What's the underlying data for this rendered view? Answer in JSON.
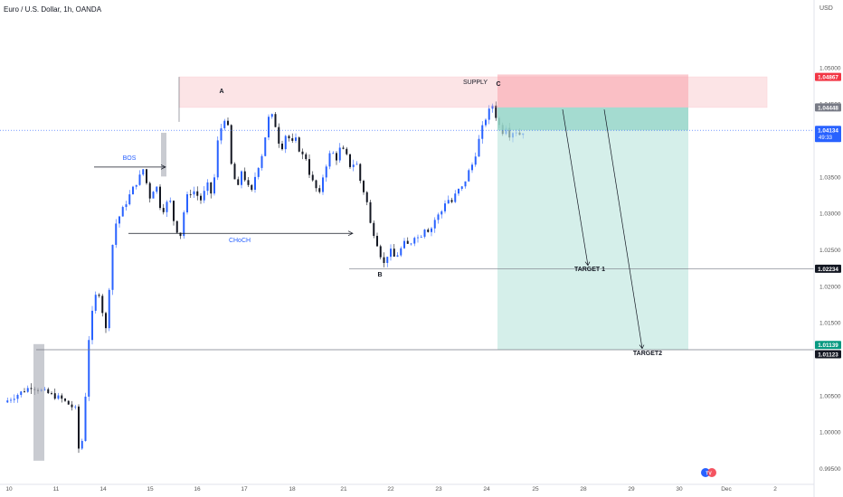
{
  "header": {
    "title": "Euro / U.S. Dollar, 1h, OANDA",
    "currency": "USD"
  },
  "colors": {
    "up": "#2962ff",
    "down": "#131722",
    "supply_fill": "#f7b3b9",
    "target_fill": "#bfe6de",
    "target_top": "#8fd3c5",
    "annotation_blue": "#2962ff"
  },
  "chart_data": {
    "type": "candlestick",
    "x_ticks": [
      "10",
      "11",
      "14",
      "15",
      "16",
      "17",
      "18",
      "21",
      "22",
      "23",
      "24",
      "25",
      "28",
      "29",
      "30",
      "Dec",
      "2"
    ],
    "y_ticks": [
      "1.05000",
      "1.04500",
      "1.03500",
      "1.03000",
      "1.02500",
      "1.02000",
      "1.01500",
      "1.00500",
      "1.00000",
      "0.99500"
    ],
    "ylim": [
      0.9935,
      1.0555
    ],
    "price_tags": {
      "supply_top": "1.04867",
      "supply_bottom": "1.04448",
      "current": "1.04134",
      "countdown": "49:33",
      "target1": "1.02234",
      "target2_a": "1.01139",
      "target2_b": "1.01123"
    },
    "annotations": {
      "bos": "BOS",
      "choch": "CHoCH",
      "supply": "SUPPLY",
      "point_a": "A",
      "point_b": "B",
      "point_c": "C",
      "target1": "TARGET 1",
      "target2": "TARGET2"
    },
    "levels": {
      "supply_zone": [
        1.04448,
        1.04867
      ],
      "target1": 1.02234,
      "target2": 1.01123,
      "bos": 1.0363,
      "choch": 1.0272,
      "current": 1.04134
    },
    "trend_points": [
      [
        0.0,
        1.004
      ],
      [
        2.0,
        1.0062
      ],
      [
        4.2,
        1.0045
      ],
      [
        5.3,
        1.003
      ],
      [
        5.6,
        0.995
      ],
      [
        6.0,
        1.005
      ],
      [
        6.3,
        1.0143
      ],
      [
        6.9,
        1.02
      ],
      [
        7.5,
        1.014
      ],
      [
        8.1,
        1.028
      ],
      [
        9.4,
        1.033
      ],
      [
        10.0,
        1.035
      ],
      [
        10.3,
        1.0362
      ],
      [
        10.7,
        1.032
      ],
      [
        11.2,
        1.034
      ],
      [
        11.6,
        1.03
      ],
      [
        12.2,
        1.032
      ],
      [
        12.6,
        1.028
      ],
      [
        13.0,
        1.027
      ],
      [
        13.4,
        1.032
      ],
      [
        13.9,
        1.0332
      ],
      [
        14.5,
        1.0318
      ],
      [
        15.0,
        1.0338
      ],
      [
        15.3,
        1.0325
      ],
      [
        15.6,
        1.036
      ],
      [
        15.8,
        1.041
      ],
      [
        16.1,
        1.042
      ],
      [
        16.4,
        1.044
      ],
      [
        16.7,
        1.037
      ],
      [
        17.2,
        1.033
      ],
      [
        17.5,
        1.0358
      ],
      [
        17.8,
        1.0345
      ],
      [
        18.2,
        1.0325
      ],
      [
        18.5,
        1.035
      ],
      [
        19.0,
        1.038
      ],
      [
        19.3,
        1.041
      ],
      [
        19.6,
        1.044
      ],
      [
        20.0,
        1.042
      ],
      [
        20.4,
        1.0385
      ],
      [
        20.8,
        1.041
      ],
      [
        21.2,
        1.0395
      ],
      [
        21.5,
        1.04
      ],
      [
        21.9,
        1.038
      ],
      [
        22.3,
        1.0375
      ],
      [
        22.6,
        1.0345
      ],
      [
        22.9,
        1.034
      ],
      [
        23.2,
        1.032
      ],
      [
        23.5,
        1.035
      ],
      [
        23.8,
        1.037
      ],
      [
        24.1,
        1.0385
      ],
      [
        24.5,
        1.0375
      ],
      [
        24.8,
        1.039
      ],
      [
        25.2,
        1.038
      ],
      [
        25.6,
        1.036
      ],
      [
        25.9,
        1.0375
      ],
      [
        26.3,
        1.034
      ],
      [
        26.7,
        1.032
      ],
      [
        27.0,
        1.0285
      ],
      [
        27.4,
        1.0265
      ],
      [
        27.7,
        1.0245
      ],
      [
        28.0,
        1.023
      ],
      [
        28.4,
        1.025
      ],
      [
        28.8,
        1.0238
      ],
      [
        29.1,
        1.0246
      ],
      [
        29.5,
        1.0258
      ],
      [
        29.9,
        1.0255
      ],
      [
        30.2,
        1.027
      ],
      [
        30.6,
        1.0265
      ],
      [
        31.0,
        1.028
      ],
      [
        31.4,
        1.0275
      ],
      [
        31.8,
        1.0293
      ],
      [
        32.2,
        1.03
      ],
      [
        32.6,
        1.032
      ],
      [
        33.0,
        1.0315
      ],
      [
        33.4,
        1.033
      ],
      [
        33.8,
        1.0335
      ],
      [
        34.2,
        1.0355
      ],
      [
        34.6,
        1.037
      ],
      [
        35.0,
        1.04
      ],
      [
        35.3,
        1.042
      ],
      [
        35.6,
        1.0435
      ],
      [
        36.0,
        1.0448
      ],
      [
        36.3,
        1.043
      ],
      [
        36.7,
        1.041
      ],
      [
        37.0,
        1.042
      ],
      [
        37.3,
        1.0405
      ],
      [
        37.6,
        1.0415
      ],
      [
        38.0,
        1.0408
      ],
      [
        38.3,
        1.0413
      ]
    ]
  },
  "watermark": "TV"
}
